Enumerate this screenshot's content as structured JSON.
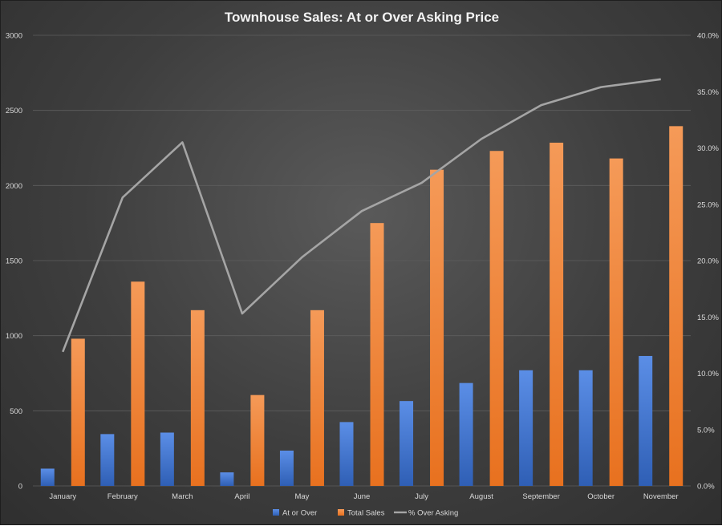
{
  "chart_data": {
    "type": "bar",
    "title": "Townhouse Sales: At or Over Asking Price",
    "categories": [
      "January",
      "February",
      "March",
      "April",
      "May",
      "June",
      "July",
      "August",
      "September",
      "October",
      "November"
    ],
    "series": [
      {
        "name": "At or Over",
        "kind": "bar",
        "axis": "left",
        "color": "#4472c4",
        "values": [
          115,
          345,
          355,
          90,
          235,
          425,
          565,
          685,
          770,
          770,
          865
        ]
      },
      {
        "name": "Total Sales",
        "kind": "bar",
        "axis": "left",
        "color": "#ed7d31",
        "values": [
          980,
          1360,
          1170,
          605,
          1170,
          1750,
          2105,
          2230,
          2285,
          2180,
          2395
        ]
      },
      {
        "name": "% Over Asking",
        "kind": "line",
        "axis": "right",
        "color": "#a5a5a5",
        "values": [
          11.9,
          25.6,
          30.5,
          15.3,
          20.3,
          24.4,
          26.9,
          30.8,
          33.8,
          35.4,
          36.1
        ]
      }
    ],
    "y_left": {
      "min": 0,
      "max": 3000,
      "ticks": [
        "0",
        "500",
        "1000",
        "1500",
        "2000",
        "2500",
        "3000"
      ]
    },
    "y_right": {
      "min": 0,
      "max": 40,
      "ticks": [
        "0.0%",
        "5.0%",
        "10.0%",
        "15.0%",
        "20.0%",
        "25.0%",
        "30.0%",
        "35.0%",
        "40.0%"
      ]
    },
    "grid": true,
    "legend_position": "bottom"
  }
}
